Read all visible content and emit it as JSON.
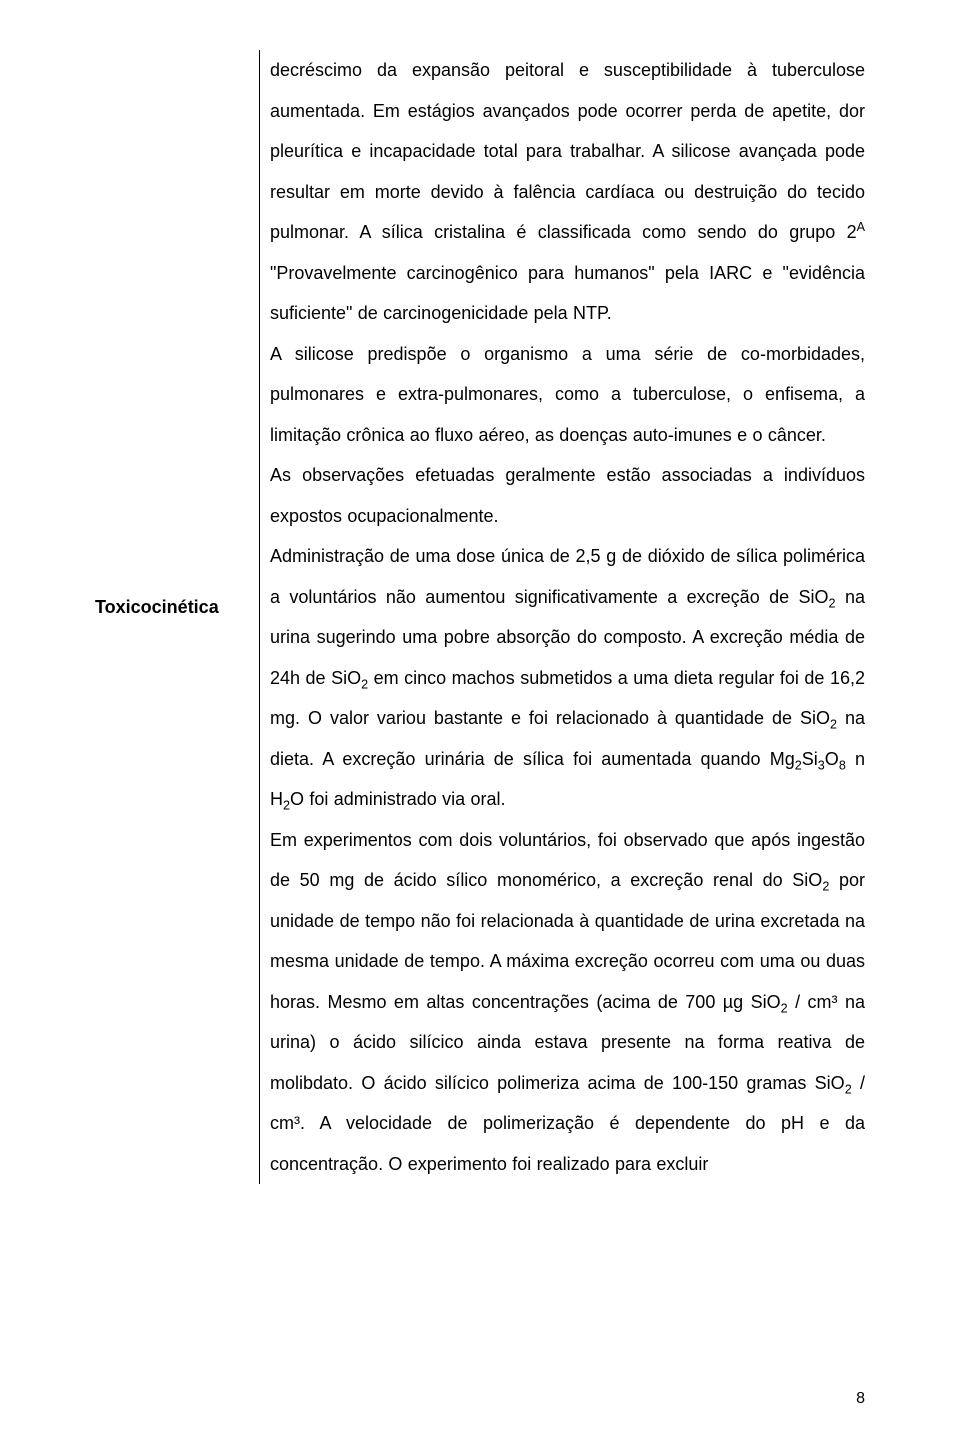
{
  "page": {
    "number": "8",
    "rowLabel": "Toxicocinética"
  },
  "content": {
    "p1_a": "decréscimo da expansão peitoral e susceptibilidade à tuberculose aumentada. Em estágios avançados pode ocorrer perda de apetite, dor pleurítica e incapacidade total para trabalhar. A silicose avançada pode resultar em morte devido à falência cardíaca ou destruição do tecido pulmonar. A sílica cristalina é classificada como sendo do grupo 2",
    "p1_sup": "A",
    "p1_b": " \"Provavelmente carcinogênico para humanos\" pela IARC e \"evidência suficiente\" de carcinogenicidade pela NTP.",
    "p2": "A silicose predispõe o organismo a uma série de co-morbidades, pulmonares e extra-pulmonares, como a tuberculose, o enfisema, a limitação crônica ao fluxo aéreo, as doenças auto-imunes e o câncer.",
    "p3": "As observações efetuadas geralmente estão associadas a indivíduos expostos ocupacionalmente.",
    "p4_a": "Administração de uma dose única de 2,5 g de dióxido de sílica polimérica a voluntários não aumentou significativamente a excreção de SiO",
    "p4_s1": "2",
    "p4_b": " na urina sugerindo uma pobre absorção do composto. A excreção média de 24h de SiO",
    "p4_s2": "2",
    "p4_c": " em cinco machos submetidos a uma dieta regular foi de 16,2 mg. O valor variou bastante e foi relacionado à quantidade de SiO",
    "p4_s3": "2",
    "p4_d": " na dieta. A excreção urinária de sílica foi aumentada quando Mg",
    "p4_s4": "2",
    "p4_e": "Si",
    "p4_s5": "3",
    "p4_f": "O",
    "p4_s6": "8",
    "p4_g": " n H",
    "p4_s7": "2",
    "p4_h": "O foi administrado via oral.",
    "p5_a": "Em experimentos com dois voluntários, foi observado que após ingestão de 50 mg de ácido sílico monomérico, a excreção renal do SiO",
    "p5_s1": "2",
    "p5_b": " por unidade de tempo não foi relacionada à quantidade de urina excretada na mesma unidade de tempo. A máxima excreção ocorreu com uma ou duas horas. Mesmo em altas concentrações (acima de 700 µg SiO",
    "p5_s2": "2",
    "p5_c": " / cm³ na urina) o ácido silícico ainda estava presente na forma reativa de molibdato. O ácido silícico polimeriza acima de 100-150 gramas SiO",
    "p5_s3": "2",
    "p5_d": " / cm³. A velocidade de polimerização é dependente do pH e da concentração. O experimento foi realizado para excluir"
  }
}
